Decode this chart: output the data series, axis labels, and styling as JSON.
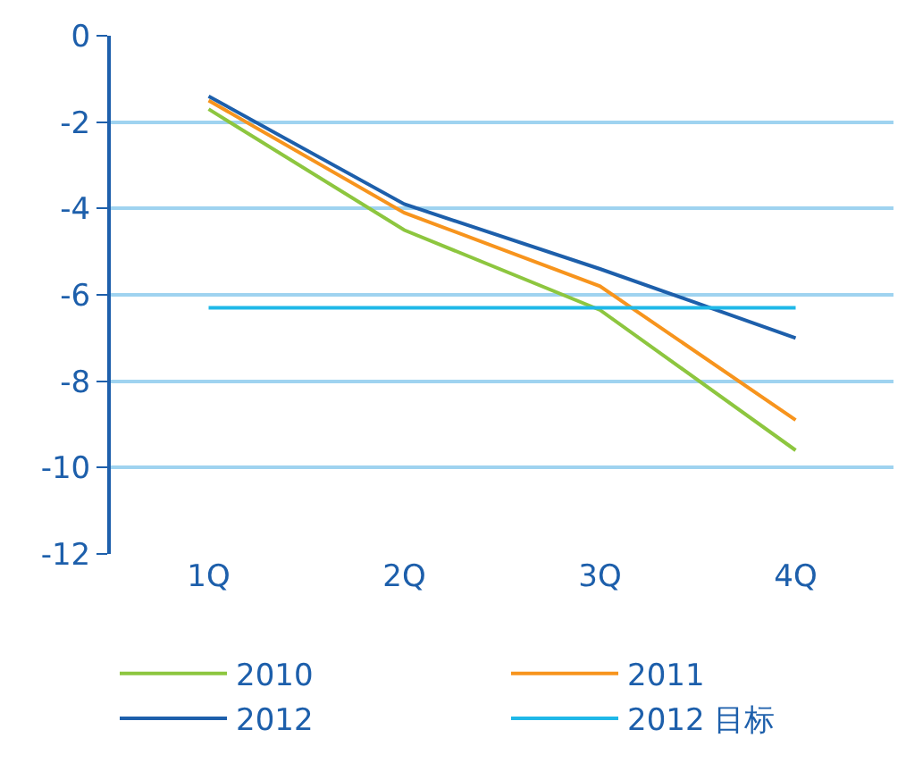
{
  "chart_data": {
    "type": "line",
    "categories": [
      "1Q",
      "2Q",
      "3Q",
      "4Q"
    ],
    "series": [
      {
        "name": "2010",
        "color": "#8dc63f",
        "values": [
          -1.7,
          -4.5,
          -6.35,
          -9.6
        ]
      },
      {
        "name": "2011",
        "color": "#f7941d",
        "values": [
          -1.5,
          -4.1,
          -5.8,
          -8.9
        ]
      },
      {
        "name": "2012",
        "color": "#1d5fab",
        "values": [
          -1.4,
          -3.9,
          -5.4,
          -7.0
        ]
      },
      {
        "name": "2012 目标",
        "color": "#1fb8e8",
        "values": [
          -6.3,
          -6.3,
          -6.3,
          -6.3
        ]
      }
    ],
    "ylim": [
      -12,
      0
    ],
    "yticks": [
      -12,
      -10,
      -8,
      -6,
      -4,
      -2,
      0
    ],
    "grid": "y",
    "legend": "bottom",
    "marker": "none",
    "line_style": "solid"
  }
}
